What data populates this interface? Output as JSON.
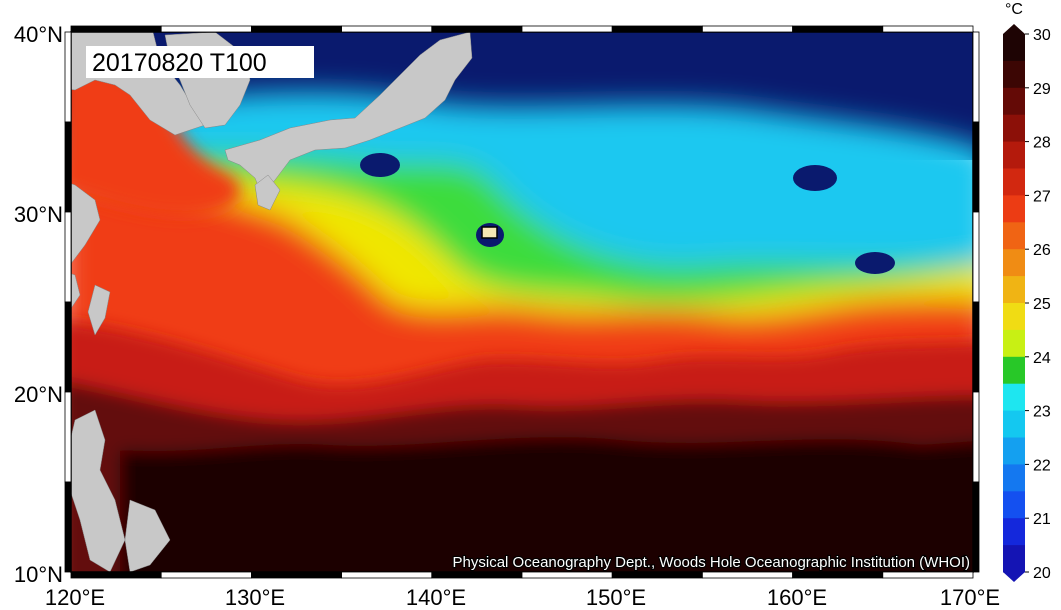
{
  "map": {
    "title": "20170820 T100",
    "credit": "Physical Oceanography Dept., Woods Hole Oceanographic Institution (WHOI)",
    "lon_labels": [
      "120°E",
      "130°E",
      "140°E",
      "150°E",
      "160°E",
      "170°E"
    ],
    "lat_labels": [
      "40°N",
      "30°N",
      "20°N",
      "10°N"
    ],
    "land_color": "#c8c8c8",
    "ocean_colors": {
      "t20": "#0a1a6e",
      "t23": "#1ec8f0",
      "t24": "#3cdc3c",
      "t25": "#f0e600",
      "t27": "#f03c14",
      "t28": "#c81e14",
      "t29": "#641008",
      "t30": "#1e0404"
    }
  },
  "colorbar": {
    "unit": "°C",
    "labels": [
      "30",
      "29",
      "28",
      "27",
      "26",
      "25",
      "24",
      "23",
      "22",
      "21",
      "20"
    ],
    "colors": [
      "#1e0404",
      "#3c0604",
      "#640a06",
      "#8c1008",
      "#b41a0c",
      "#d22810",
      "#ec3c14",
      "#f06414",
      "#f08c14",
      "#f0b414",
      "#f0dc14",
      "#c8f014",
      "#28c828",
      "#1ee6f0",
      "#14c8f0",
      "#14a0f0",
      "#1478f0",
      "#1450f0",
      "#1428dc",
      "#1414b4"
    ]
  },
  "chart_data": {
    "type": "heatmap",
    "title": "20170820 T100",
    "x_axis": {
      "ticks": [
        "120°E",
        "130°E",
        "140°E",
        "150°E",
        "160°E",
        "170°E"
      ],
      "range": [
        120,
        170
      ]
    },
    "y_axis": {
      "ticks": [
        "10°N",
        "20°N",
        "30°N",
        "40°N"
      ],
      "range": [
        10,
        40
      ]
    },
    "colorbar": {
      "unit": "°C",
      "range": [
        20,
        30
      ],
      "ticks": [
        20,
        21,
        22,
        23,
        24,
        25,
        26,
        27,
        28,
        29,
        30
      ]
    },
    "annotation": "Physical Oceanography Dept., Woods Hole Oceanographic Institution (WHOI)"
  }
}
